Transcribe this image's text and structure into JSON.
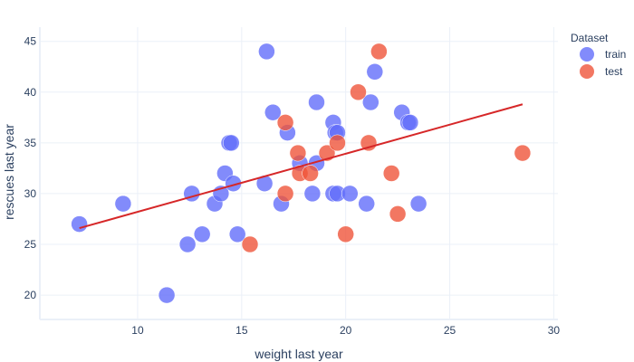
{
  "chart_data": {
    "type": "scatter",
    "title": "",
    "xlabel": "weight last year",
    "ylabel": "rescues last year",
    "xlim": [
      5.3,
      30.2
    ],
    "ylim": [
      17.6,
      46.4
    ],
    "xticks": [
      10,
      15,
      20,
      25,
      30
    ],
    "yticks": [
      20,
      25,
      30,
      35,
      40,
      45
    ],
    "grid": true,
    "legend": {
      "title": "Dataset",
      "position": "top-right"
    },
    "series": [
      {
        "name": "train",
        "color": "#636efa",
        "points": [
          {
            "x": 7.2,
            "y": 27
          },
          {
            "x": 9.3,
            "y": 29
          },
          {
            "x": 11.4,
            "y": 20
          },
          {
            "x": 12.4,
            "y": 25
          },
          {
            "x": 12.6,
            "y": 30
          },
          {
            "x": 13.1,
            "y": 26
          },
          {
            "x": 13.7,
            "y": 29
          },
          {
            "x": 14.0,
            "y": 30
          },
          {
            "x": 14.2,
            "y": 32
          },
          {
            "x": 14.4,
            "y": 35
          },
          {
            "x": 14.5,
            "y": 35
          },
          {
            "x": 14.6,
            "y": 31
          },
          {
            "x": 14.8,
            "y": 26
          },
          {
            "x": 16.1,
            "y": 31
          },
          {
            "x": 16.2,
            "y": 44
          },
          {
            "x": 16.5,
            "y": 38
          },
          {
            "x": 16.9,
            "y": 29
          },
          {
            "x": 17.2,
            "y": 36
          },
          {
            "x": 17.8,
            "y": 33
          },
          {
            "x": 18.4,
            "y": 30
          },
          {
            "x": 18.6,
            "y": 33
          },
          {
            "x": 18.6,
            "y": 39
          },
          {
            "x": 19.4,
            "y": 37
          },
          {
            "x": 19.4,
            "y": 30
          },
          {
            "x": 19.5,
            "y": 36
          },
          {
            "x": 19.6,
            "y": 30
          },
          {
            "x": 19.6,
            "y": 36
          },
          {
            "x": 20.2,
            "y": 30
          },
          {
            "x": 21.0,
            "y": 29
          },
          {
            "x": 21.2,
            "y": 39
          },
          {
            "x": 21.4,
            "y": 42
          },
          {
            "x": 22.7,
            "y": 38
          },
          {
            "x": 23.0,
            "y": 37
          },
          {
            "x": 23.1,
            "y": 37
          },
          {
            "x": 23.5,
            "y": 29
          }
        ]
      },
      {
        "name": "test",
        "color": "#ef553b",
        "points": [
          {
            "x": 15.4,
            "y": 25
          },
          {
            "x": 17.1,
            "y": 37
          },
          {
            "x": 17.1,
            "y": 30
          },
          {
            "x": 17.7,
            "y": 34
          },
          {
            "x": 17.8,
            "y": 32
          },
          {
            "x": 18.3,
            "y": 32
          },
          {
            "x": 19.1,
            "y": 34
          },
          {
            "x": 19.6,
            "y": 35
          },
          {
            "x": 20.0,
            "y": 26
          },
          {
            "x": 20.6,
            "y": 40
          },
          {
            "x": 21.1,
            "y": 35
          },
          {
            "x": 21.6,
            "y": 44
          },
          {
            "x": 22.2,
            "y": 32
          },
          {
            "x": 22.5,
            "y": 28
          },
          {
            "x": 28.5,
            "y": 34
          }
        ]
      }
    ],
    "fit_line": {
      "color": "#d62728",
      "x": [
        7.2,
        28.5
      ],
      "y": [
        26.6,
        38.8
      ]
    }
  }
}
